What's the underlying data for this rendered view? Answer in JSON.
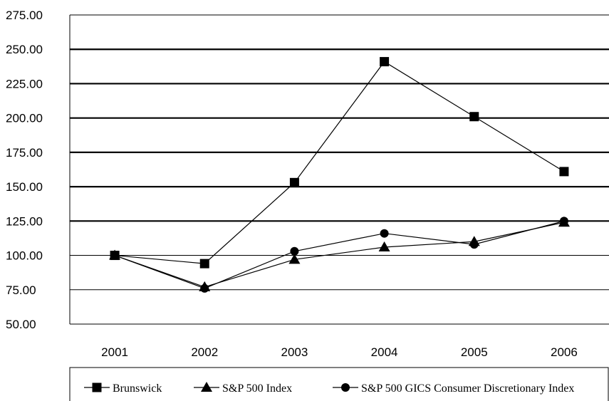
{
  "chart_data": {
    "type": "line",
    "title": "",
    "xlabel": "",
    "ylabel": "",
    "categories": [
      "2001",
      "2002",
      "2003",
      "2004",
      "2005",
      "2006"
    ],
    "ylim": [
      50,
      275
    ],
    "yticks": [
      "50.00",
      "75.00",
      "100.00",
      "125.00",
      "150.00",
      "175.00",
      "200.00",
      "225.00",
      "250.00",
      "275.00"
    ],
    "grid": true,
    "legend_position": "bottom",
    "series": [
      {
        "name": "Brunswick",
        "marker": "square",
        "values": [
          100,
          94,
          153,
          241,
          201,
          161
        ]
      },
      {
        "name": "S&P 500 Index",
        "marker": "triangle",
        "values": [
          100,
          77,
          97,
          106,
          110,
          124
        ]
      },
      {
        "name": "S&P 500 GICS Consumer Discretionary Index",
        "marker": "circle",
        "values": [
          100,
          76,
          103,
          116,
          108,
          125
        ]
      }
    ],
    "colors": {
      "line": "#000000",
      "grid": "#000000",
      "background": "#ffffff"
    }
  }
}
